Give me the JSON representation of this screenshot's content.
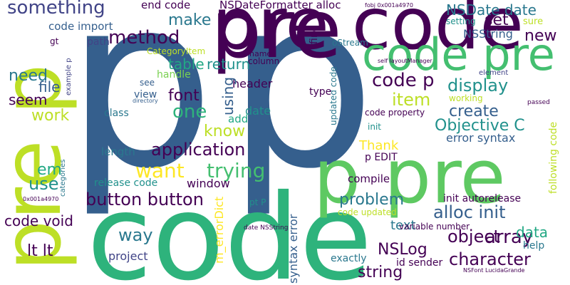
{
  "cloud": {
    "background": "#ffffff",
    "palette": {
      "dark_purple": "#440154",
      "purple": "#482475",
      "indigo": "#414487",
      "blue": "#355f8d",
      "teal_blue": "#2a788e",
      "teal": "#21918c",
      "green_teal": "#22a884",
      "green": "#44bf70",
      "light_green": "#7ad151",
      "yellow_green": "#bddf26",
      "yellow": "#fde725"
    },
    "words": [
      "p",
      "p",
      "pre",
      "code",
      "pre code",
      "code pre",
      "p pre",
      "pre p",
      "something",
      "end code",
      "NSDateFormatter alloc",
      "NSDate date",
      "set",
      "method",
      "make",
      "code import",
      "path",
      "CategoryItem",
      "return",
      "name",
      "column",
      "need",
      "file",
      "seem",
      "work",
      "table",
      "handle",
      "header",
      "code p",
      "item",
      "display",
      "using",
      "one",
      "font",
      "view",
      "see",
      "class",
      "date",
      "add",
      "know",
      "create",
      "Objective C",
      "error syntax",
      "Thank",
      "p EDIT",
      "application",
      "trying",
      "want",
      "length",
      "em",
      "use",
      "categories",
      "release code",
      "window",
      "compile",
      "button button",
      "problem",
      "init autorelease",
      "alloc init",
      "array",
      "code void",
      "way",
      "pt P",
      "data",
      "object",
      "text",
      "NSLog",
      "project",
      "string",
      "character",
      "lt lt",
      "syntax error",
      "m_errorDict",
      "id sender",
      "exactly",
      "help",
      "NSString",
      "new",
      "sure",
      "setting",
      "oStream",
      "updated code",
      "type",
      "fine",
      "code property",
      "working",
      "following code",
      "element",
      "passed",
      "variable number",
      "code updated",
      "init",
      "date NSString",
      "example p",
      "gt",
      "directory",
      "self layoutManager",
      "fobj 0x001a4970",
      "0x001a4970",
      "NSFont LucidaGrande"
    ]
  }
}
